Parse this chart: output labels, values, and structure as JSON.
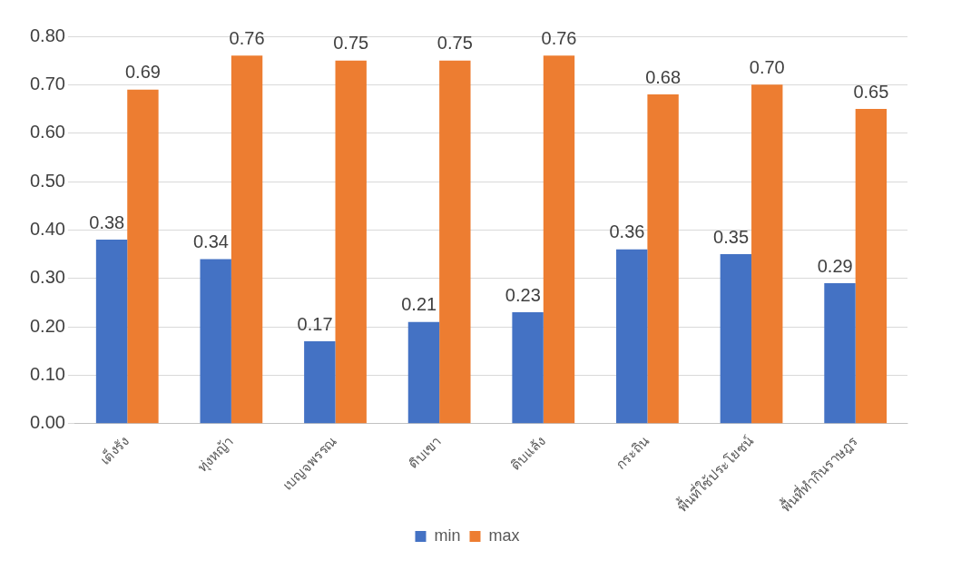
{
  "chart_data": {
    "type": "bar",
    "categories": [
      "เต็งรัง",
      "ทุ่งหญ้า",
      "เบญจพรรณ",
      "ดิบเขา",
      "ดิบแล้ง",
      "กระถิน",
      "พื้นที่ใช้ประโยชน์",
      "พื้นที่ทำกินราษฎร"
    ],
    "series": [
      {
        "name": "min",
        "color": "#4472c4",
        "values": [
          0.38,
          0.34,
          0.17,
          0.21,
          0.23,
          0.36,
          0.35,
          0.29
        ],
        "value_labels": [
          "0.38",
          "0.34",
          "0.17",
          "0.21",
          "0.23",
          "0.36",
          "0.35",
          "0.29"
        ]
      },
      {
        "name": "max",
        "color": "#ed7d31",
        "values": [
          0.69,
          0.76,
          0.75,
          0.75,
          0.76,
          0.68,
          0.7,
          0.65
        ],
        "value_labels": [
          "0.69",
          "0.76",
          "0.75",
          "0.75",
          "0.76",
          "0.68",
          "0.70",
          "0.65"
        ]
      }
    ],
    "ylim": [
      0,
      0.8
    ],
    "yticks": [
      {
        "value": 0,
        "label": "0.00"
      },
      {
        "value": 0.1,
        "label": "0.10"
      },
      {
        "value": 0.2,
        "label": "0.20"
      },
      {
        "value": 0.3,
        "label": "0.30"
      },
      {
        "value": 0.4,
        "label": "0.40"
      },
      {
        "value": 0.5,
        "label": "0.50"
      },
      {
        "value": 0.6,
        "label": "0.60"
      },
      {
        "value": 0.7,
        "label": "0.70"
      },
      {
        "value": 0.8,
        "label": "0.80"
      }
    ],
    "grid": "y",
    "legend": "bottom"
  }
}
